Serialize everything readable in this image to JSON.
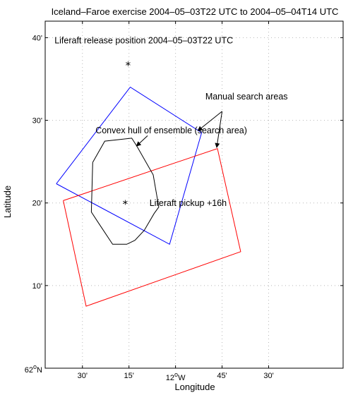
{
  "chart_data": {
    "type": "line",
    "title": "Iceland–Faroe exercise 2004–05–03T22 UTC to 2004–05–04T14 UTC",
    "xlabel": "Longitude",
    "ylabel": "Latitude",
    "xlim": [
      -12.7,
      -11.1
    ],
    "ylim": [
      62.0,
      62.7
    ],
    "grid": true,
    "x_ticks": [
      {
        "value": -12.5,
        "label": "30'"
      },
      {
        "value": -12.25,
        "label": "15'"
      },
      {
        "value": -12.0,
        "label": "12°W",
        "main": "12",
        "sup": "o",
        "suffix": "W"
      },
      {
        "value": -11.75,
        "label": "45'"
      },
      {
        "value": -11.5,
        "label": "30'"
      }
    ],
    "y_ticks": [
      {
        "value": 62.0,
        "label": "62°N",
        "main": "62",
        "sup": "o",
        "suffix": "N"
      },
      {
        "value": 62.1667,
        "label": "10'"
      },
      {
        "value": 62.3333,
        "label": "20'"
      },
      {
        "value": 62.5,
        "label": "30'"
      },
      {
        "value": 62.6667,
        "label": "40'"
      }
    ],
    "series": [
      {
        "kind": "polygon",
        "color": "#0000ff",
        "points": [
          [
            -12.64,
            62.372
          ],
          [
            -12.243,
            62.567
          ],
          [
            -11.86,
            62.475
          ],
          [
            -12.032,
            62.25
          ],
          [
            -12.64,
            62.372
          ]
        ]
      },
      {
        "kind": "polygon",
        "color": "#ff0000",
        "points": [
          [
            -12.603,
            62.338
          ],
          [
            -11.775,
            62.443
          ],
          [
            -11.65,
            62.235
          ],
          [
            -12.48,
            62.125
          ],
          [
            -12.603,
            62.338
          ]
        ]
      },
      {
        "kind": "polygon",
        "color": "#000000",
        "points": [
          [
            -12.445,
            62.415
          ],
          [
            -12.38,
            62.458
          ],
          [
            -12.235,
            62.464
          ],
          [
            -12.208,
            62.448
          ],
          [
            -12.12,
            62.39
          ],
          [
            -12.09,
            62.325
          ],
          [
            -12.115,
            62.312
          ],
          [
            -12.168,
            62.278
          ],
          [
            -12.218,
            62.258
          ],
          [
            -12.262,
            62.25
          ],
          [
            -12.338,
            62.25
          ],
          [
            -12.412,
            62.292
          ],
          [
            -12.452,
            62.315
          ],
          [
            -12.445,
            62.415
          ]
        ]
      },
      {
        "kind": "marker",
        "symbol": "*",
        "points": [
          [
            -12.255,
            62.612
          ],
          [
            -12.27,
            62.332
          ]
        ]
      }
    ],
    "annotations": [
      {
        "text": "Liferaft release position 2004–05–03T22 UTC",
        "x": -12.65,
        "y": 62.655
      },
      {
        "text": "Manual search areas",
        "x": -11.84,
        "y": 62.542,
        "arrows_to": [
          [
            -11.88,
            62.479
          ],
          [
            -11.779,
            62.445
          ]
        ],
        "arrow_from": [
          -11.75,
          62.518
        ]
      },
      {
        "text": "Convex hull of ensemble (search area)",
        "x": -12.43,
        "y": 62.474,
        "arrows_to": [
          [
            -12.21,
            62.448
          ]
        ],
        "arrow_from": [
          -12.15,
          62.469
        ]
      },
      {
        "text": "Liferaft pickup +16h",
        "x": -12.14,
        "y": 62.327
      }
    ]
  }
}
